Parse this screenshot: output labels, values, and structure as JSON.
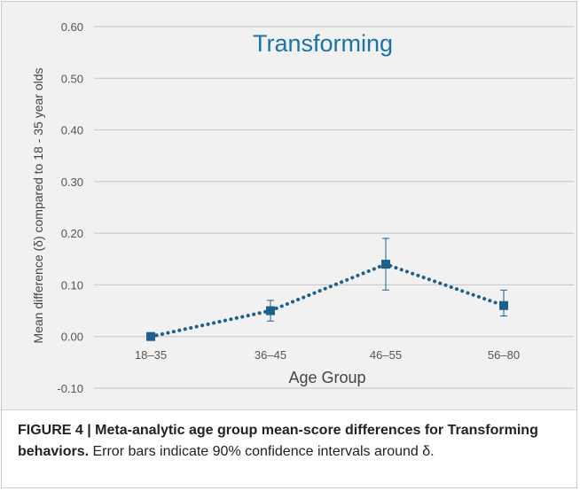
{
  "chart_data": {
    "type": "line",
    "title": "Transforming",
    "xlabel": "Age Group",
    "ylabel": "Mean difference (δ) compared to 18 - 35 year olds",
    "categories": [
      "18–35",
      "36–45",
      "46–55",
      "56–80"
    ],
    "series": [
      {
        "values": [
          0.0,
          0.05,
          0.14,
          0.06
        ],
        "ci_lower": [
          0.0,
          0.03,
          0.09,
          0.04
        ],
        "ci_upper": [
          0.0,
          0.07,
          0.19,
          0.09
        ]
      }
    ],
    "ylim": [
      -0.1,
      0.6
    ],
    "yticks": [
      "0.60",
      "0.50",
      "0.40",
      "0.30",
      "0.20",
      "0.10",
      "0.00",
      "-0.10"
    ],
    "grid": true,
    "colors": {
      "series": "#1f5f8b",
      "title": "#1a73a8",
      "grid": "#c4c4c4",
      "panel": "#f1f1f1"
    }
  },
  "caption": {
    "bold": "FIGURE 4 | Meta-analytic age group mean-score differences for Transforming behaviors.",
    "text": " Error bars indicate 90% confidence intervals around δ."
  }
}
